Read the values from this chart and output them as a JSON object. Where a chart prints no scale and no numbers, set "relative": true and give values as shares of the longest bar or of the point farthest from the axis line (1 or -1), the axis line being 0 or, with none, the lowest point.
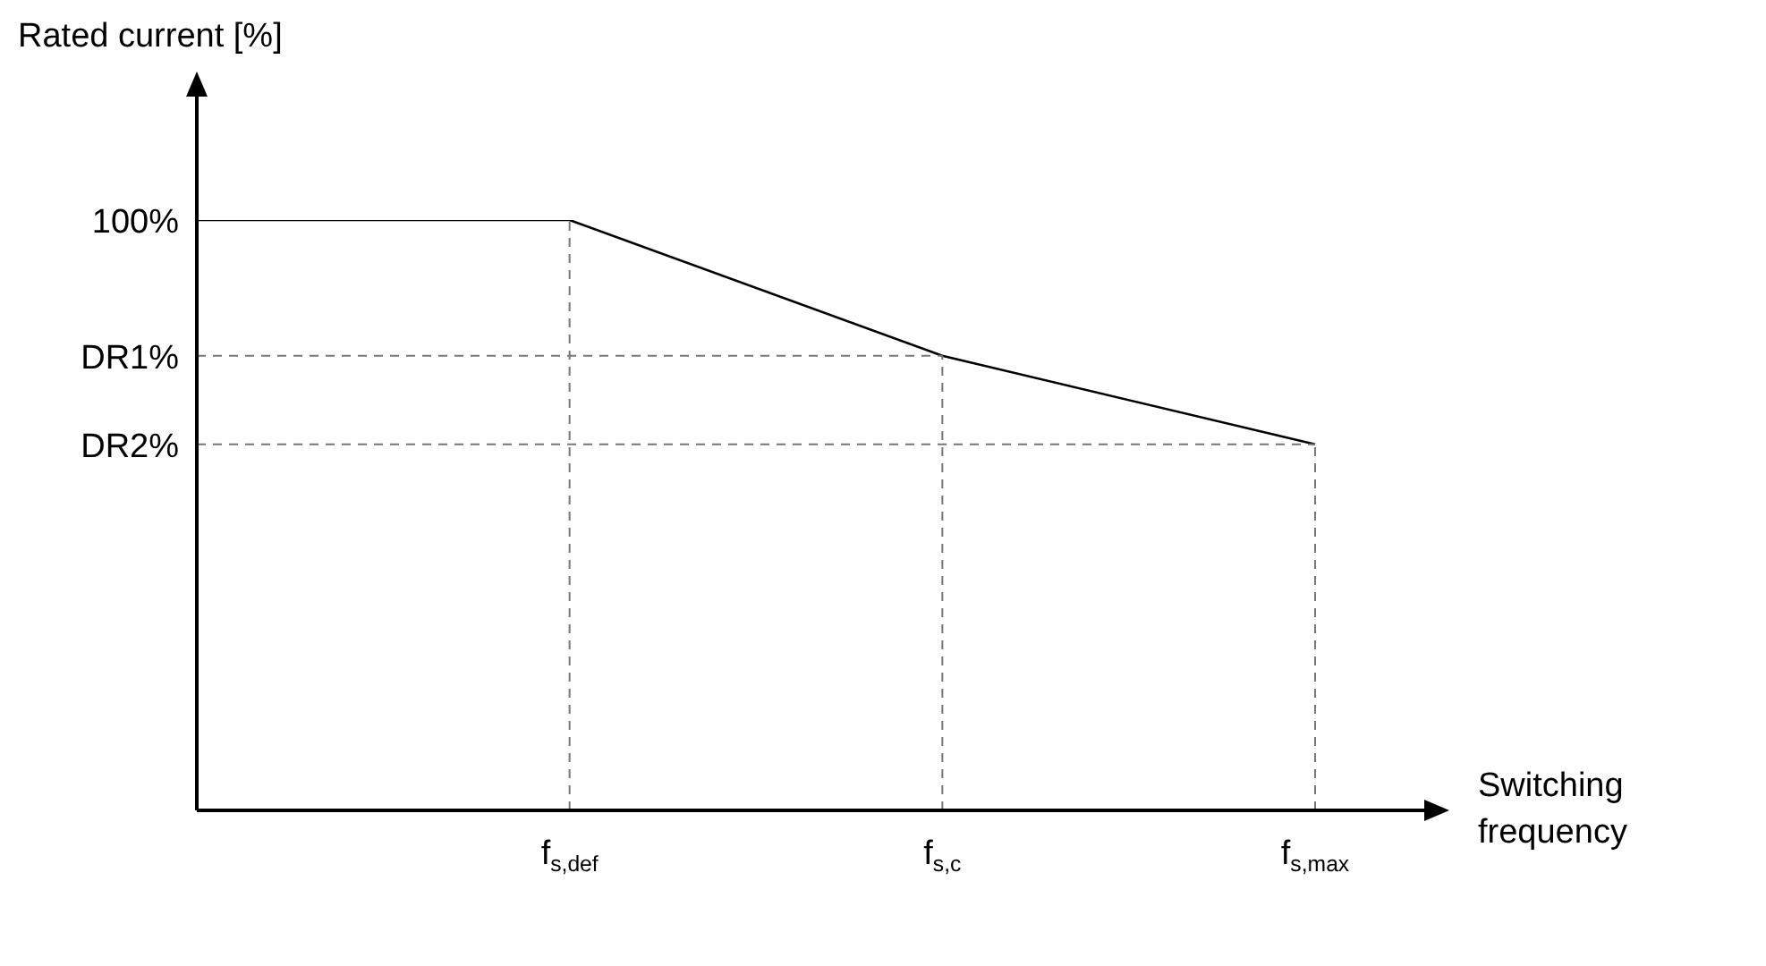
{
  "chart_data": {
    "type": "line",
    "relative": true,
    "ylabel": "Rated current [%]",
    "xlabel": "Switching frequency",
    "categories": [
      null,
      "f$_{s,def}$",
      "f$_{s,c}$",
      "f$_{s,max}$"
    ],
    "values": [
      1,
      1,
      0.77,
      0.62
    ],
    "color": "#000000",
    "annotations": [
      "100%"
    ],
    "marker": "none",
    "line_style": "solid",
    "legend": false,
    "ref_lines": [
      {
        "axis": "x",
        "value": "f$_{s,def}$",
        "line_style": "dashed",
        "color": "#777777"
      },
      {
        "axis": "x",
        "value": "f$_{s,c}$",
        "line_style": "dashed",
        "color": "#777777"
      },
      {
        "axis": "x",
        "value": "f$_{s,max}$",
        "line_style": "dashed",
        "color": "#777777"
      },
      {
        "axis": "y",
        "value": 0.77,
        "label": "DR1%",
        "line_style": "dashed",
        "color": "#777777"
      },
      {
        "axis": "y",
        "value": 0.62,
        "label": "DR2%",
        "line_style": "dashed",
        "color": "#777777"
      }
    ]
  }
}
